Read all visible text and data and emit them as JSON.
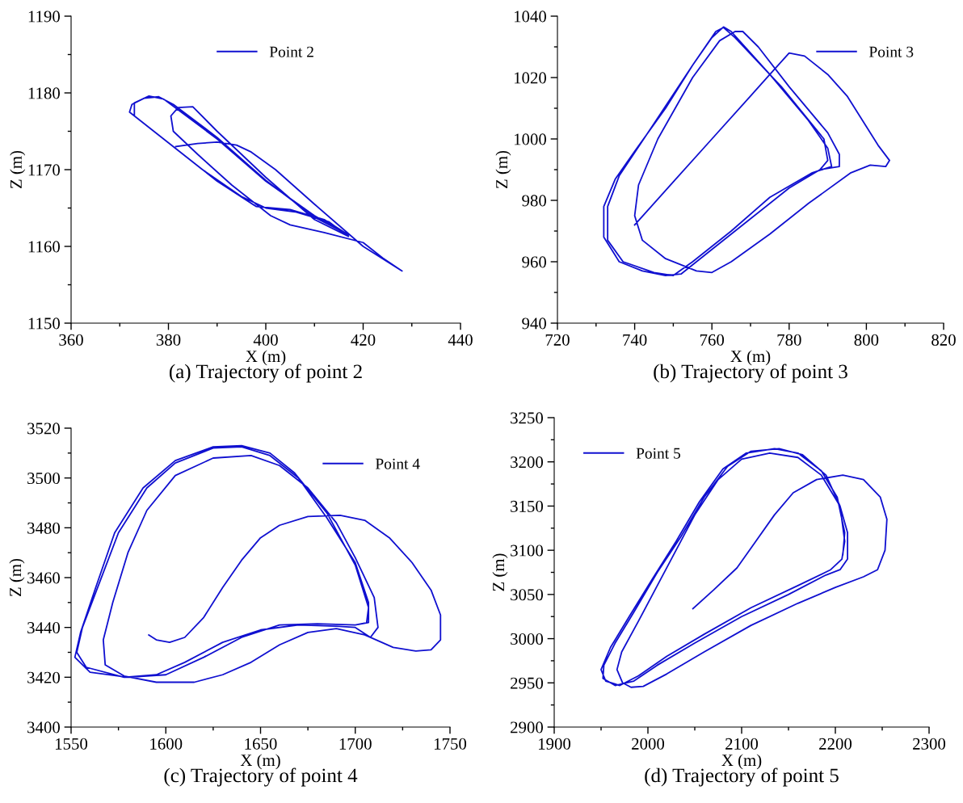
{
  "chart_data": [
    {
      "type": "line",
      "title": "(a) Trajectory of point 2",
      "xlabel": "X (m)",
      "ylabel": "Z (m)",
      "xlim": [
        360,
        440
      ],
      "xticks": [
        360,
        380,
        400,
        420,
        440
      ],
      "ylim": [
        1150,
        1190
      ],
      "yticks": [
        1150,
        1160,
        1170,
        1180,
        1190
      ],
      "grid": false,
      "legend": "top",
      "line_style": "solid",
      "marker": "none",
      "x": [
        381.5,
        386,
        390,
        394,
        397,
        402,
        410,
        420,
        428,
        424,
        420,
        412,
        405,
        401,
        398,
        393,
        386,
        381,
        380.5,
        382,
        385,
        390,
        400,
        410,
        417,
        413,
        406,
        400,
        395,
        387,
        378,
        372,
        372.5,
        375,
        378,
        381,
        390,
        400,
        410,
        417,
        412,
        405,
        398,
        390,
        380,
        373,
        373,
        376,
        379,
        390,
        400,
        410,
        416
      ],
      "series": [
        {
          "name": "Point 2",
          "color": "#1010d0",
          "values": [
            1173,
            1173.4,
            1173.6,
            1173.2,
            1172.3,
            1170,
            1165.5,
            1160,
            1156.8,
            1158.5,
            1160.5,
            1161.8,
            1162.8,
            1164,
            1165.5,
            1168,
            1172,
            1175,
            1177,
            1178.1,
            1178.2,
            1175,
            1169,
            1163.5,
            1161.3,
            1163.2,
            1164.5,
            1165,
            1166.5,
            1170,
            1174.5,
            1177.5,
            1178.5,
            1179.3,
            1179.5,
            1178.5,
            1174.2,
            1168.6,
            1163.8,
            1161.5,
            1163.5,
            1164.8,
            1165.2,
            1168.5,
            1173.5,
            1177,
            1178.7,
            1179.6,
            1179.2,
            1174,
            1168.5,
            1164,
            1161.8
          ]
        }
      ]
    },
    {
      "type": "line",
      "title": "(b) Trajectory of point 3",
      "xlabel": "X (m)",
      "ylabel": "Z (m)",
      "xlim": [
        720,
        820
      ],
      "xticks": [
        720,
        740,
        760,
        780,
        800,
        820
      ],
      "ylim": [
        940,
        1040
      ],
      "yticks": [
        940,
        960,
        980,
        1000,
        1020,
        1040
      ],
      "grid": false,
      "legend": "top right",
      "line_style": "solid",
      "marker": "none",
      "x": [
        740,
        750,
        760,
        770,
        775,
        780,
        784,
        790,
        795,
        803,
        806,
        805,
        801,
        796,
        785,
        775,
        765,
        760,
        756,
        748,
        742,
        740,
        741,
        746,
        755,
        762,
        766,
        768,
        772,
        780,
        790,
        793,
        793,
        788,
        780,
        770,
        760,
        752,
        748,
        742,
        736,
        732,
        732,
        735,
        740,
        748,
        755,
        760,
        763,
        765,
        775,
        785,
        790,
        791,
        786,
        775,
        765,
        755,
        750,
        745,
        737,
        733,
        733,
        736,
        745,
        755,
        761,
        763,
        766,
        778,
        789,
        790,
        788
      ],
      "series": [
        {
          "name": "Point 3",
          "color": "#1010d0",
          "values": [
            972,
            986,
            1000,
            1014,
            1021,
            1028,
            1027,
            1021,
            1014,
            998,
            993,
            991,
            991.5,
            989,
            979,
            969,
            960,
            956.5,
            957,
            961,
            967,
            975,
            985,
            1000,
            1020,
            1032,
            1035,
            1035,
            1030,
            1017,
            1002,
            995,
            991,
            990,
            984,
            974,
            964,
            956,
            955.5,
            957,
            960,
            968,
            978,
            987,
            996,
            1010,
            1024,
            1033,
            1036.5,
            1035,
            1021,
            1006,
            997,
            991,
            989,
            981,
            970,
            960,
            955.5,
            956.5,
            960,
            967,
            978,
            988,
            1005,
            1024,
            1035,
            1036.3,
            1033,
            1017,
            1000,
            993,
            990
          ]
        }
      ]
    },
    {
      "type": "line",
      "title": "(c) Trajectory of point 4",
      "xlabel": "X (m)",
      "ylabel": "Z (m)",
      "xlim": [
        1550,
        1750
      ],
      "xticks": [
        1550,
        1600,
        1650,
        1700,
        1750
      ],
      "ylim": [
        3400,
        3520
      ],
      "yticks": [
        3400,
        3420,
        3440,
        3460,
        3480,
        3500,
        3520
      ],
      "grid": false,
      "legend": "top right",
      "line_style": "solid",
      "marker": "none",
      "x": [
        1591,
        1595,
        1602,
        1610,
        1620,
        1630,
        1640,
        1650,
        1660,
        1675,
        1692,
        1705,
        1718,
        1730,
        1740,
        1745,
        1745,
        1740,
        1732,
        1720,
        1705,
        1690,
        1675,
        1660,
        1645,
        1630,
        1615,
        1595,
        1578,
        1568,
        1567,
        1572,
        1580,
        1590,
        1605,
        1625,
        1645,
        1660,
        1675,
        1690,
        1700,
        1710,
        1712,
        1708,
        1700,
        1690,
        1670,
        1650,
        1630,
        1610,
        1595,
        1578,
        1558,
        1553,
        1556,
        1565,
        1575,
        1590,
        1605,
        1625,
        1640,
        1655,
        1670,
        1685,
        1700,
        1707,
        1707,
        1700,
        1680,
        1660,
        1640,
        1620,
        1600,
        1580,
        1560,
        1552,
        1555,
        1563,
        1573,
        1588,
        1605,
        1625,
        1640,
        1655,
        1668,
        1685,
        1700,
        1707,
        1706
      ],
      "series": [
        {
          "name": "Point 4",
          "color": "#1010d0",
          "values": [
            3437,
            3435,
            3434,
            3436,
            3444,
            3456,
            3467,
            3476,
            3481,
            3484.5,
            3485,
            3483,
            3476,
            3466,
            3455,
            3445,
            3435,
            3431,
            3430.5,
            3432,
            3437,
            3439.5,
            3438,
            3433,
            3426,
            3421,
            3418,
            3418,
            3420.5,
            3425,
            3435,
            3450,
            3470,
            3487,
            3501,
            3508,
            3509,
            3505,
            3496,
            3482,
            3468,
            3452,
            3440,
            3436,
            3440,
            3440.5,
            3441,
            3439,
            3434,
            3426,
            3421,
            3420,
            3424,
            3430,
            3440,
            3458,
            3478,
            3496,
            3506,
            3512,
            3512.5,
            3509,
            3500,
            3484,
            3466,
            3450,
            3442,
            3441,
            3441.5,
            3441,
            3436,
            3428,
            3421,
            3420,
            3422,
            3428,
            3438,
            3456,
            3478,
            3496,
            3507,
            3512.5,
            3513,
            3510,
            3502,
            3486,
            3465,
            3448,
            3442
          ]
        }
      ]
    },
    {
      "type": "line",
      "title": "(d) Trajectory of point 5",
      "xlabel": "X (m)",
      "ylabel": "Z (m)",
      "xlim": [
        1900,
        2300
      ],
      "xticks": [
        1900,
        2000,
        2100,
        2200,
        2300
      ],
      "ylim": [
        2900,
        3250
      ],
      "yticks": [
        2900,
        2950,
        3000,
        3050,
        3100,
        3150,
        3200,
        3250
      ],
      "grid": false,
      "legend": "top left",
      "line_style": "solid",
      "marker": "none",
      "x": [
        2048,
        2070,
        2095,
        2115,
        2135,
        2155,
        2180,
        2208,
        2230,
        2248,
        2255,
        2253,
        2245,
        2230,
        2200,
        2160,
        2110,
        2060,
        2020,
        1995,
        1982,
        1973,
        1967,
        1972,
        1990,
        2010,
        2030,
        2050,
        2075,
        2100,
        2130,
        2160,
        2185,
        2205,
        2213,
        2213,
        2205,
        2190,
        2150,
        2100,
        2050,
        2010,
        1985,
        1965,
        1952,
        1953,
        1965,
        1985,
        2010,
        2035,
        2060,
        2085,
        2110,
        2140,
        2165,
        2190,
        2205,
        2210,
        2207,
        2195,
        2160,
        2110,
        2060,
        2020,
        1990,
        1970,
        1955,
        1950,
        1960,
        1980,
        2005,
        2030,
        2055,
        2080,
        2105,
        2135,
        2160,
        2185,
        2202,
        2210,
        2208
      ],
      "series": [
        {
          "name": "Point 5",
          "color": "#1010d0",
          "values": [
            3034,
            3055,
            3080,
            3110,
            3140,
            3165,
            3180,
            3185,
            3180,
            3160,
            3135,
            3100,
            3078,
            3070,
            3058,
            3040,
            3015,
            2985,
            2960,
            2946,
            2945,
            2950,
            2965,
            2985,
            3020,
            3060,
            3100,
            3140,
            3180,
            3203,
            3210,
            3205,
            3185,
            3150,
            3120,
            3090,
            3078,
            3072,
            3050,
            3025,
            2995,
            2970,
            2952,
            2947,
            2955,
            2970,
            2995,
            3030,
            3075,
            3115,
            3160,
            3195,
            3212,
            3215,
            3208,
            3185,
            3150,
            3110,
            3090,
            3078,
            3060,
            3035,
            3005,
            2980,
            2958,
            2947,
            2952,
            2965,
            2990,
            3025,
            3068,
            3110,
            3155,
            3192,
            3210,
            3215,
            3210,
            3190,
            3160,
            3120,
            3095
          ]
        }
      ]
    }
  ]
}
